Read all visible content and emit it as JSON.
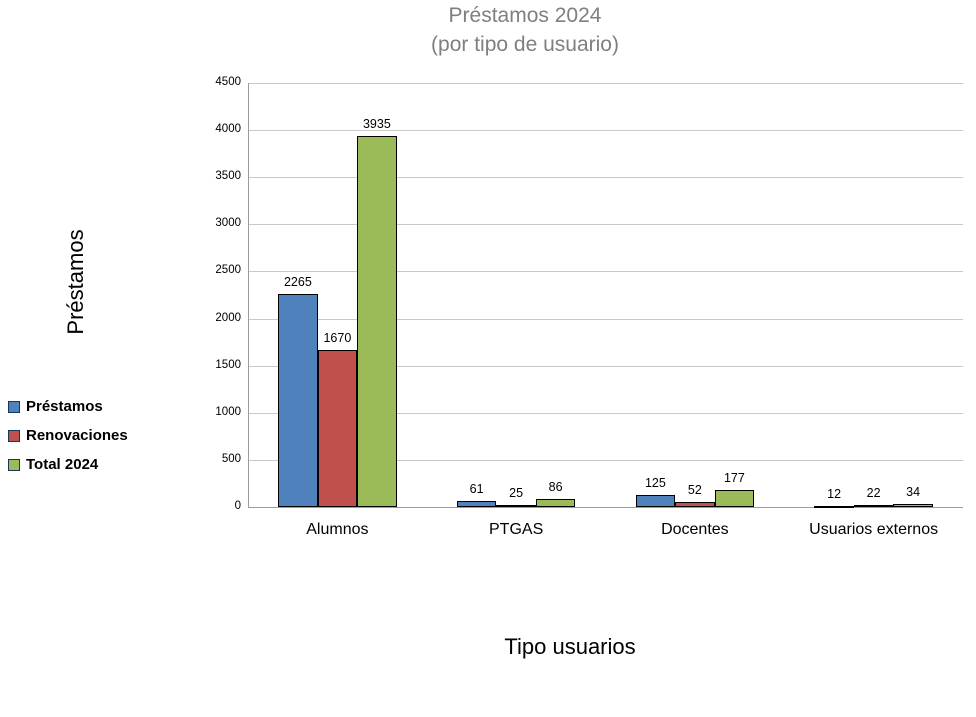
{
  "chart_data": {
    "type": "bar",
    "title": "Préstamos 2024",
    "subtitle": "(por tipo de usuario)",
    "xlabel": "Tipo usuarios",
    "ylabel": "Préstamos",
    "categories": [
      "Alumnos",
      "PTGAS",
      "Docentes",
      "Usuarios externos"
    ],
    "series": [
      {
        "name": "Préstamos",
        "color": "#4F81BD",
        "values": [
          2265,
          61,
          125,
          12
        ]
      },
      {
        "name": "Renovaciones",
        "color": "#C0504D",
        "values": [
          1670,
          25,
          52,
          22
        ]
      },
      {
        "name": "Total 2024",
        "color": "#9BBB59",
        "values": [
          3935,
          86,
          177,
          34
        ]
      }
    ],
    "ylim": [
      0,
      4500
    ],
    "ytick_step": 500,
    "ytick_labels": [
      "0",
      "500",
      "1000",
      "1500",
      "2000",
      "2500",
      "3000",
      "3500",
      "4000",
      "4500"
    ],
    "grid": "horizontal-only",
    "legend_position": "left",
    "data_labels": true
  },
  "colors": {
    "title_text": "#7F7F7F",
    "gridline": "#C9C9C9",
    "axis_line": "#9C9C9C",
    "bar_border": "#000000",
    "series_blue": "#4F81BD",
    "series_red": "#C0504D",
    "series_green": "#9BBB59"
  }
}
